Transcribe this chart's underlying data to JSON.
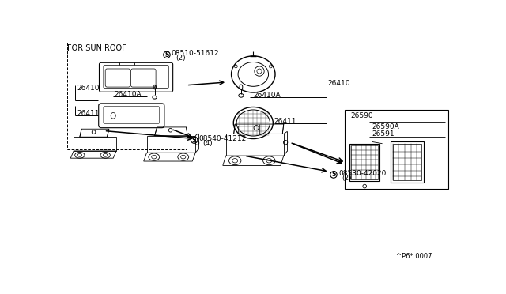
{
  "bg_color": "#ffffff",
  "lc": "#000000",
  "fig_width": 6.4,
  "fig_height": 3.72,
  "dpi": 100,
  "labels": {
    "for_sun_roof": "FOR SUN ROOF",
    "s1_part": "08510-51612",
    "s1_qty": "(2)",
    "s2_part": "08540-41212",
    "s2_qty": "(4)",
    "s3_part": "08530-42020",
    "s3_qty": "(2)",
    "p26410": "26410",
    "p26410a": "26410A",
    "p26411": "26411",
    "p26590": "26590",
    "p26590a": "26590A",
    "p26591": "26591",
    "footnote": "^P6* 0007"
  }
}
